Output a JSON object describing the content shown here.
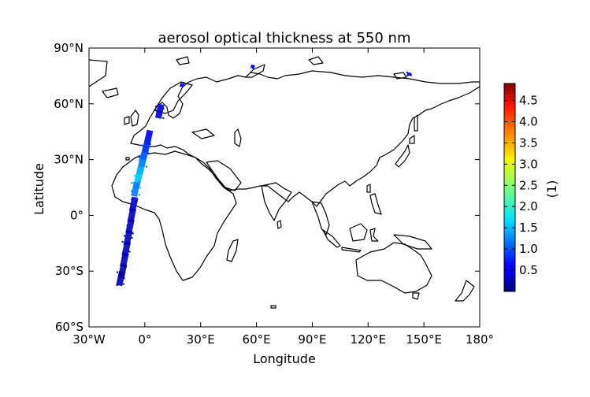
{
  "chart_data": {
    "type": "map",
    "title": "aerosol optical thickness at 550 nm",
    "xlabel": "Longitude",
    "ylabel": "Latitude",
    "xlim": [
      -30,
      180
    ],
    "ylim": [
      -60,
      90
    ],
    "xticks": [
      {
        "value": -30,
        "label": "30°W"
      },
      {
        "value": 0,
        "label": "0°"
      },
      {
        "value": 30,
        "label": "30°E"
      },
      {
        "value": 60,
        "label": "60°E"
      },
      {
        "value": 90,
        "label": "90°E"
      },
      {
        "value": 120,
        "label": "120°E"
      },
      {
        "value": 150,
        "label": "150°E"
      },
      {
        "value": 180,
        "label": "180°"
      }
    ],
    "yticks": [
      {
        "value": 90,
        "label": "90°N"
      },
      {
        "value": 60,
        "label": "60°N"
      },
      {
        "value": 30,
        "label": "30°N"
      },
      {
        "value": 0,
        "label": "0°"
      },
      {
        "value": -30,
        "label": "30°S"
      },
      {
        "value": -60,
        "label": "60°S"
      }
    ],
    "colorbar": {
      "label": "(1)",
      "range": [
        0,
        4.9
      ],
      "colormap": "jet",
      "ticks": [
        {
          "value": 0.5,
          "label": "0.5"
        },
        {
          "value": 1.0,
          "label": "1.0"
        },
        {
          "value": 1.5,
          "label": "1.5"
        },
        {
          "value": 2.0,
          "label": "2.0"
        },
        {
          "value": 2.5,
          "label": "2.5"
        },
        {
          "value": 3.0,
          "label": "3.0"
        },
        {
          "value": 3.5,
          "label": "3.5"
        },
        {
          "value": 4.0,
          "label": "4.0"
        },
        {
          "value": 4.5,
          "label": "4.5"
        }
      ]
    },
    "swath": [
      {
        "lat": 42,
        "lon": 2,
        "aot": 0.6
      },
      {
        "lat": 38,
        "lon": 1,
        "aot": 0.8
      },
      {
        "lat": 34,
        "lon": 0,
        "aot": 0.9
      },
      {
        "lat": 30,
        "lon": -1,
        "aot": 1.1
      },
      {
        "lat": 26,
        "lon": -2,
        "aot": 1.3
      },
      {
        "lat": 22,
        "lon": -3,
        "aot": 1.5
      },
      {
        "lat": 18,
        "lon": -4,
        "aot": 1.6
      },
      {
        "lat": 14,
        "lon": -5,
        "aot": 1.2
      },
      {
        "lat": 6,
        "lon": -6,
        "aot": 0.4
      },
      {
        "lat": 0,
        "lon": -7,
        "aot": 0.3
      },
      {
        "lat": -6,
        "lon": -8,
        "aot": 0.3
      },
      {
        "lat": -12,
        "lon": -9,
        "aot": 0.3
      },
      {
        "lat": -18,
        "lon": -10,
        "aot": 0.3
      },
      {
        "lat": -24,
        "lon": -11,
        "aot": 0.3
      },
      {
        "lat": -30,
        "lon": -12,
        "aot": 0.2
      },
      {
        "lat": -34,
        "lon": -13,
        "aot": 0.2
      },
      {
        "lat": 56,
        "lon": 8,
        "aot": 0.4
      },
      {
        "lat": 70,
        "lon": 20,
        "aot": 0.5
      },
      {
        "lat": 80,
        "lon": 58,
        "aot": 0.6
      },
      {
        "lat": 76,
        "lon": 142,
        "aot": 0.5
      }
    ],
    "colors": {
      "land_outline": "#000000",
      "frame": "#000000",
      "background": "#ffffff"
    }
  }
}
